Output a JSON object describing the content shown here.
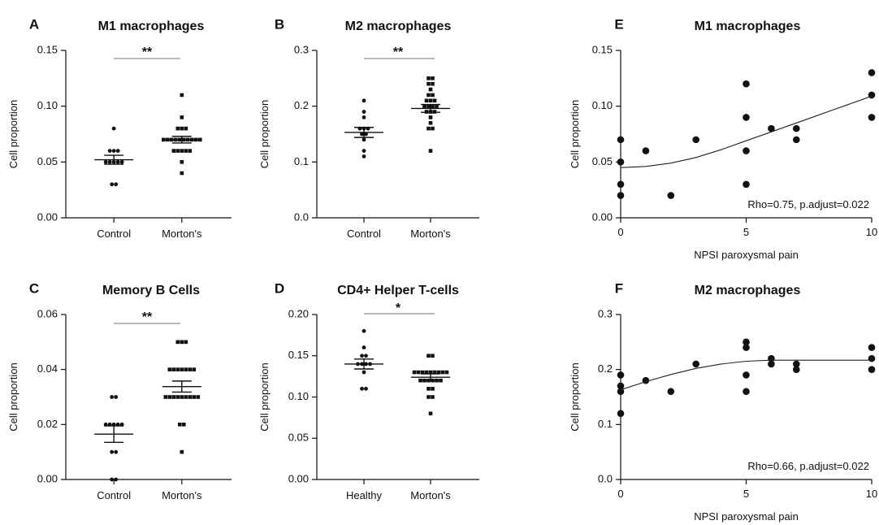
{
  "chart_data": [
    {
      "panel": "A",
      "type": "scatter",
      "title": "M1 macrophages",
      "ylabel": "Cell proportion",
      "categories": [
        "Control",
        "Morton's"
      ],
      "ylim": [
        0,
        0.15
      ],
      "yticks": [
        "0.00",
        "0.05",
        "0.10",
        "0.15"
      ],
      "significance": "**",
      "series": [
        {
          "values": [
            0.08,
            0.06,
            0.06,
            0.06,
            0.05,
            0.05,
            0.05,
            0.05,
            0.05,
            0.03,
            0.03
          ],
          "mean": 0.052,
          "sem": 0.004
        },
        {
          "values": [
            0.11,
            0.09,
            0.08,
            0.08,
            0.08,
            0.07,
            0.07,
            0.07,
            0.07,
            0.07,
            0.07,
            0.07,
            0.07,
            0.07,
            0.07,
            0.06,
            0.06,
            0.06,
            0.06,
            0.06,
            0.05,
            0.04
          ],
          "mean": 0.07,
          "sem": 0.003
        }
      ]
    },
    {
      "panel": "B",
      "type": "scatter",
      "title": "M2 macrophages",
      "ylabel": "Cell proportion",
      "categories": [
        "Control",
        "Morton's"
      ],
      "ylim": [
        0,
        0.3
      ],
      "yticks": [
        "0.0",
        "0.1",
        "0.2",
        "0.3"
      ],
      "significance": "**",
      "series": [
        {
          "values": [
            0.21,
            0.19,
            0.18,
            0.16,
            0.16,
            0.16,
            0.15,
            0.15,
            0.14,
            0.12,
            0.11
          ],
          "mean": 0.153,
          "sem": 0.009
        },
        {
          "values": [
            0.25,
            0.25,
            0.24,
            0.24,
            0.23,
            0.22,
            0.22,
            0.21,
            0.21,
            0.21,
            0.2,
            0.2,
            0.2,
            0.2,
            0.19,
            0.19,
            0.19,
            0.18,
            0.17,
            0.16,
            0.16,
            0.12
          ],
          "mean": 0.196,
          "sem": 0.007
        }
      ]
    },
    {
      "panel": "C",
      "type": "scatter",
      "title": "Memory B Cells",
      "ylabel": "Cell proportion",
      "categories": [
        "Control",
        "Morton's"
      ],
      "ylim": [
        0,
        0.06
      ],
      "yticks": [
        "0.00",
        "0.02",
        "0.04",
        "0.06"
      ],
      "significance": "**",
      "series": [
        {
          "values": [
            0.03,
            0.03,
            0.02,
            0.02,
            0.02,
            0.02,
            0.02,
            0.01,
            0.01,
            0.0,
            0.0
          ],
          "mean": 0.0165,
          "sem": 0.003
        },
        {
          "values": [
            0.05,
            0.05,
            0.05,
            0.04,
            0.04,
            0.04,
            0.04,
            0.04,
            0.04,
            0.04,
            0.03,
            0.03,
            0.03,
            0.03,
            0.03,
            0.03,
            0.03,
            0.03,
            0.03,
            0.02,
            0.02,
            0.01
          ],
          "mean": 0.0338,
          "sem": 0.002
        }
      ]
    },
    {
      "panel": "D",
      "type": "scatter",
      "title": "CD4+ Helper T-cells",
      "ylabel": "Cell proportion",
      "categories": [
        "Healthy",
        "Morton's"
      ],
      "ylim": [
        0,
        0.2
      ],
      "yticks": [
        "0.00",
        "0.05",
        "0.10",
        "0.15",
        "0.20"
      ],
      "significance": "*",
      "series": [
        {
          "values": [
            0.18,
            0.16,
            0.15,
            0.15,
            0.14,
            0.14,
            0.14,
            0.14,
            0.13,
            0.11,
            0.11
          ],
          "mean": 0.14,
          "sem": 0.006
        },
        {
          "values": [
            0.15,
            0.15,
            0.13,
            0.13,
            0.13,
            0.13,
            0.13,
            0.13,
            0.13,
            0.13,
            0.13,
            0.12,
            0.12,
            0.12,
            0.12,
            0.12,
            0.12,
            0.11,
            0.11,
            0.1,
            0.1,
            0.08
          ],
          "mean": 0.124,
          "sem": 0.004
        }
      ]
    },
    {
      "panel": "E",
      "type": "scatter",
      "title": "M1 macrophages",
      "xlabel": "NPSI paroxysmal pain",
      "ylabel": "Cell proportion",
      "xlim": [
        0,
        10
      ],
      "ylim": [
        0,
        0.15
      ],
      "xticks": [
        "0",
        "5",
        "10"
      ],
      "yticks": [
        "0.00",
        "0.05",
        "0.10",
        "0.15"
      ],
      "annotation": "Rho=0.75, p.adjust=0.022",
      "points": [
        [
          0,
          0.07
        ],
        [
          0,
          0.05
        ],
        [
          0,
          0.03
        ],
        [
          0,
          0.02
        ],
        [
          1,
          0.06
        ],
        [
          2,
          0.02
        ],
        [
          3,
          0.07
        ],
        [
          5,
          0.12
        ],
        [
          5,
          0.09
        ],
        [
          5,
          0.06
        ],
        [
          5,
          0.03
        ],
        [
          6,
          0.08
        ],
        [
          7,
          0.08
        ],
        [
          7,
          0.07
        ],
        [
          10,
          0.13
        ],
        [
          10,
          0.11
        ],
        [
          10,
          0.09
        ]
      ],
      "fit": [
        [
          0,
          0.045
        ],
        [
          1,
          0.046
        ],
        [
          2,
          0.049
        ],
        [
          3,
          0.054
        ],
        [
          4,
          0.061
        ],
        [
          5,
          0.069
        ],
        [
          6,
          0.077
        ],
        [
          7,
          0.085
        ],
        [
          8,
          0.093
        ],
        [
          9,
          0.101
        ],
        [
          10,
          0.109
        ]
      ]
    },
    {
      "panel": "F",
      "type": "scatter",
      "title": "M2 macrophages",
      "xlabel": "NPSI paroxysmal pain",
      "ylabel": "Cell proportion",
      "xlim": [
        0,
        10
      ],
      "ylim": [
        0,
        0.3
      ],
      "xticks": [
        "0",
        "5",
        "10"
      ],
      "yticks": [
        "0.0",
        "0.1",
        "0.2",
        "0.3"
      ],
      "annotation": "Rho=0.66, p.adjust=0.022",
      "points": [
        [
          0,
          0.19
        ],
        [
          0,
          0.17
        ],
        [
          0,
          0.16
        ],
        [
          0,
          0.12
        ],
        [
          1,
          0.18
        ],
        [
          2,
          0.16
        ],
        [
          3,
          0.21
        ],
        [
          5,
          0.25
        ],
        [
          5,
          0.24
        ],
        [
          5,
          0.19
        ],
        [
          5,
          0.16
        ],
        [
          6,
          0.22
        ],
        [
          6,
          0.21
        ],
        [
          7,
          0.21
        ],
        [
          7,
          0.2
        ],
        [
          10,
          0.24
        ],
        [
          10,
          0.22
        ],
        [
          10,
          0.2
        ]
      ],
      "fit": [
        [
          0,
          0.163
        ],
        [
          1,
          0.178
        ],
        [
          2,
          0.191
        ],
        [
          3,
          0.202
        ],
        [
          4,
          0.21
        ],
        [
          5,
          0.215
        ],
        [
          6,
          0.217
        ],
        [
          7,
          0.217
        ],
        [
          8,
          0.217
        ],
        [
          9,
          0.217
        ],
        [
          10,
          0.217
        ]
      ]
    }
  ]
}
